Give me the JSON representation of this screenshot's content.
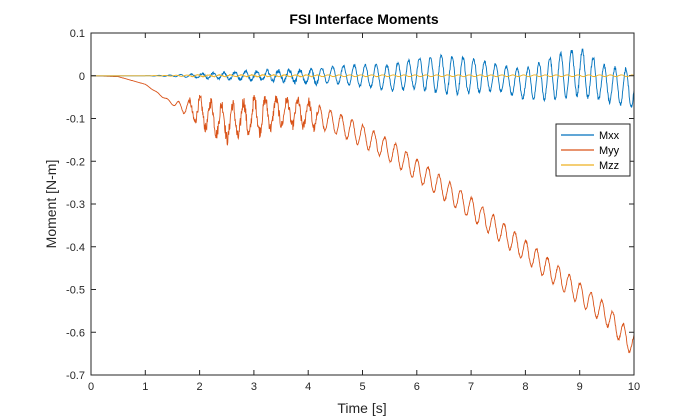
{
  "chart_data": {
    "type": "line",
    "title": "FSI Interface Moments",
    "xlabel": "Time [s]",
    "ylabel": "Moment [N-m]",
    "xlim": [
      0,
      10
    ],
    "ylim": [
      -0.7,
      0.1
    ],
    "xticks": [
      0,
      1,
      2,
      3,
      4,
      5,
      6,
      7,
      8,
      9,
      10
    ],
    "yticks": [
      0.1,
      0,
      -0.1,
      -0.2,
      -0.3,
      -0.4,
      -0.5,
      -0.6,
      -0.7
    ],
    "xtick_labels": [
      "0",
      "1",
      "2",
      "3",
      "4",
      "5",
      "6",
      "7",
      "8",
      "9",
      "10"
    ],
    "ytick_labels": [
      "0.1",
      "0",
      "-0.1",
      "-0.2",
      "-0.3",
      "-0.4",
      "-0.5",
      "-0.6",
      "-0.7"
    ],
    "grid": false,
    "legend_position": "upper-right",
    "series": [
      {
        "name": "Mxx",
        "color": "#0072BD",
        "x": [
          0,
          0.5,
          1,
          1.5,
          2,
          2.5,
          3,
          3.5,
          4,
          4.5,
          5,
          5.5,
          6,
          6.5,
          7,
          7.5,
          8,
          8.5,
          9,
          9.5,
          10
        ],
        "y": [
          0,
          0,
          0,
          0,
          0,
          0,
          0,
          0,
          -0.002,
          0.002,
          0,
          -0.005,
          0.005,
          0.002,
          0,
          -0.005,
          -0.02,
          -0.005,
          0.01,
          -0.02,
          -0.03
        ],
        "amplitude": [
          0,
          0,
          0,
          0.002,
          0.005,
          0.008,
          0.01,
          0.012,
          0.015,
          0.02,
          0.025,
          0.03,
          0.035,
          0.045,
          0.04,
          0.03,
          0.035,
          0.05,
          0.055,
          0.04,
          0.045
        ]
      },
      {
        "name": "Myy",
        "color": "#D95319",
        "x": [
          0,
          0.5,
          1,
          1.5,
          2,
          2.5,
          3,
          3.5,
          4,
          4.5,
          5,
          5.5,
          6,
          6.5,
          7,
          7.5,
          8,
          8.5,
          9,
          9.5,
          10
        ],
        "y": [
          0,
          -0.002,
          -0.02,
          -0.065,
          -0.085,
          -0.11,
          -0.095,
          -0.085,
          -0.09,
          -0.11,
          -0.14,
          -0.175,
          -0.22,
          -0.265,
          -0.31,
          -0.36,
          -0.41,
          -0.46,
          -0.51,
          -0.56,
          -0.635
        ],
        "amplitude": [
          0,
          0,
          0,
          0.003,
          0.03,
          0.04,
          0.04,
          0.03,
          0.03,
          0.025,
          0.025,
          0.025,
          0.025,
          0.025,
          0.025,
          0.025,
          0.025,
          0.025,
          0.025,
          0.025,
          0.025
        ]
      },
      {
        "name": "Mzz",
        "color": "#EDB120",
        "x": [
          0,
          0.5,
          1,
          1.5,
          2,
          2.5,
          3,
          3.5,
          4,
          4.5,
          5,
          5.5,
          6,
          6.5,
          7,
          7.5,
          8,
          8.5,
          9,
          9.5,
          10
        ],
        "y": [
          0,
          0,
          0,
          0,
          0,
          0,
          0,
          0,
          0,
          0,
          0,
          0,
          0,
          0,
          0,
          0,
          0,
          0,
          0,
          0,
          0
        ],
        "amplitude": [
          0,
          0,
          0,
          0.001,
          0.002,
          0.002,
          0.002,
          0.002,
          0.002,
          0.002,
          0.002,
          0.002,
          0.002,
          0.002,
          0.002,
          0.002,
          0.002,
          0.002,
          0.002,
          0.002,
          0.002
        ]
      }
    ],
    "oscillation_period": 0.2
  }
}
